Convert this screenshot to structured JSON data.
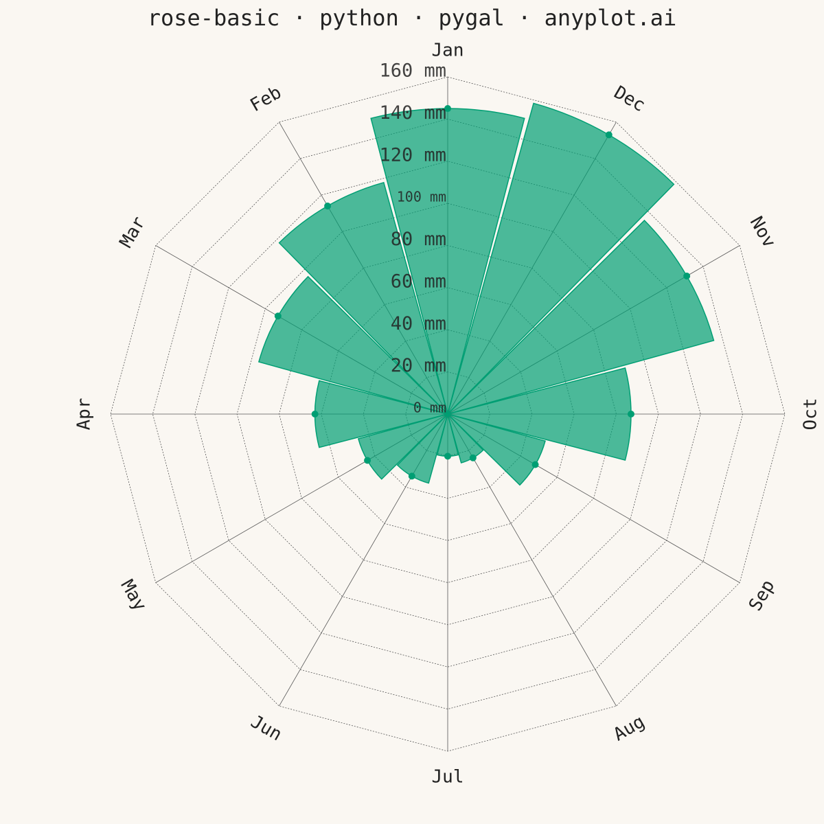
{
  "chart_data": {
    "type": "rose",
    "title": "rose-basic · python · pygal · anyplot.ai",
    "categories": [
      "Jan",
      "Feb",
      "Mar",
      "Apr",
      "May",
      "Jun",
      "Jul",
      "Aug",
      "Sep",
      "Oct",
      "Nov",
      "Dec"
    ],
    "values": [
      145,
      114,
      93,
      63,
      44,
      34,
      20,
      24,
      48,
      87,
      131,
      153
    ],
    "color": "#009E73",
    "rlim": [
      0,
      160
    ],
    "rticks": [
      {
        "value": 0,
        "label": "0 mm"
      },
      {
        "value": 20,
        "label": "20 mm"
      },
      {
        "value": 40,
        "label": "40 mm"
      },
      {
        "value": 60,
        "label": "60 mm"
      },
      {
        "value": 80,
        "label": "80 mm"
      },
      {
        "value": 100,
        "label": "100 mm"
      },
      {
        "value": 120,
        "label": "120 mm"
      },
      {
        "value": 140,
        "label": "140 mm"
      },
      {
        "value": 160,
        "label": "160 mm"
      }
    ],
    "grid": true
  }
}
